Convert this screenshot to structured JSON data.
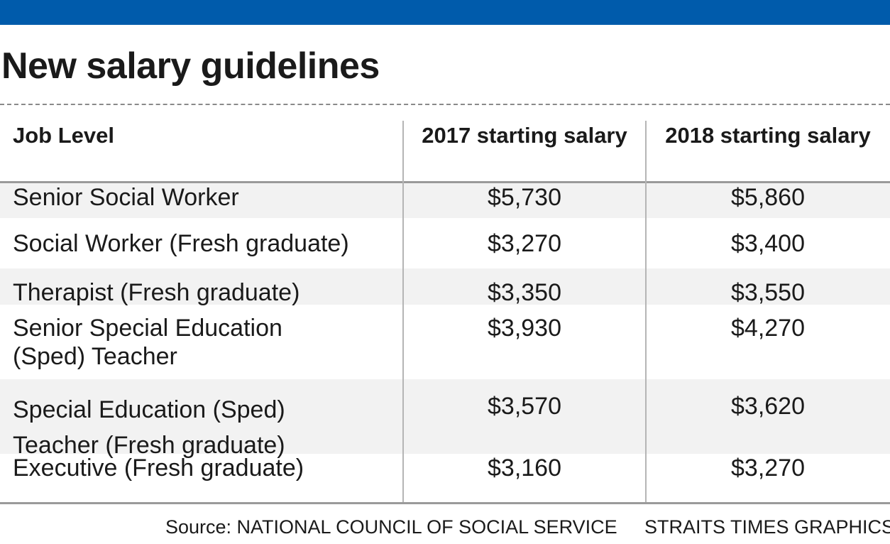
{
  "colors": {
    "top_bar": "#005bab",
    "row_shade": "#f2f2f2",
    "rule": "#9a9a9a"
  },
  "chart_data": {
    "type": "table",
    "title": "New salary guidelines",
    "columns": [
      "Job Level",
      "2017 starting salary",
      "2018 starting salary"
    ],
    "rows": [
      {
        "job_lines": [
          "Senior Social Worker"
        ],
        "salary_2017": "$5,730",
        "salary_2018": "$5,860"
      },
      {
        "job_lines": [
          "Social Worker (Fresh graduate)"
        ],
        "salary_2017": "$3,270",
        "salary_2018": "$3,400"
      },
      {
        "job_lines": [
          "Therapist (Fresh graduate)"
        ],
        "salary_2017": "$3,350",
        "salary_2018": "$3,550"
      },
      {
        "job_lines": [
          "Senior Special Education",
          "(Sped) Teacher"
        ],
        "salary_2017": "$3,930",
        "salary_2018": "$4,270"
      },
      {
        "job_lines": [
          "Special Education (Sped)",
          "Teacher (Fresh graduate)"
        ],
        "salary_2017": "$3,570",
        "salary_2018": "$3,620"
      },
      {
        "job_lines": [
          "Executive (Fresh graduate)"
        ],
        "salary_2017": "$3,160",
        "salary_2018": "$3,270"
      }
    ],
    "source": "Source: NATIONAL COUNCIL OF SOCIAL SERVICE",
    "credit": "STRAITS TIMES GRAPHICS"
  }
}
